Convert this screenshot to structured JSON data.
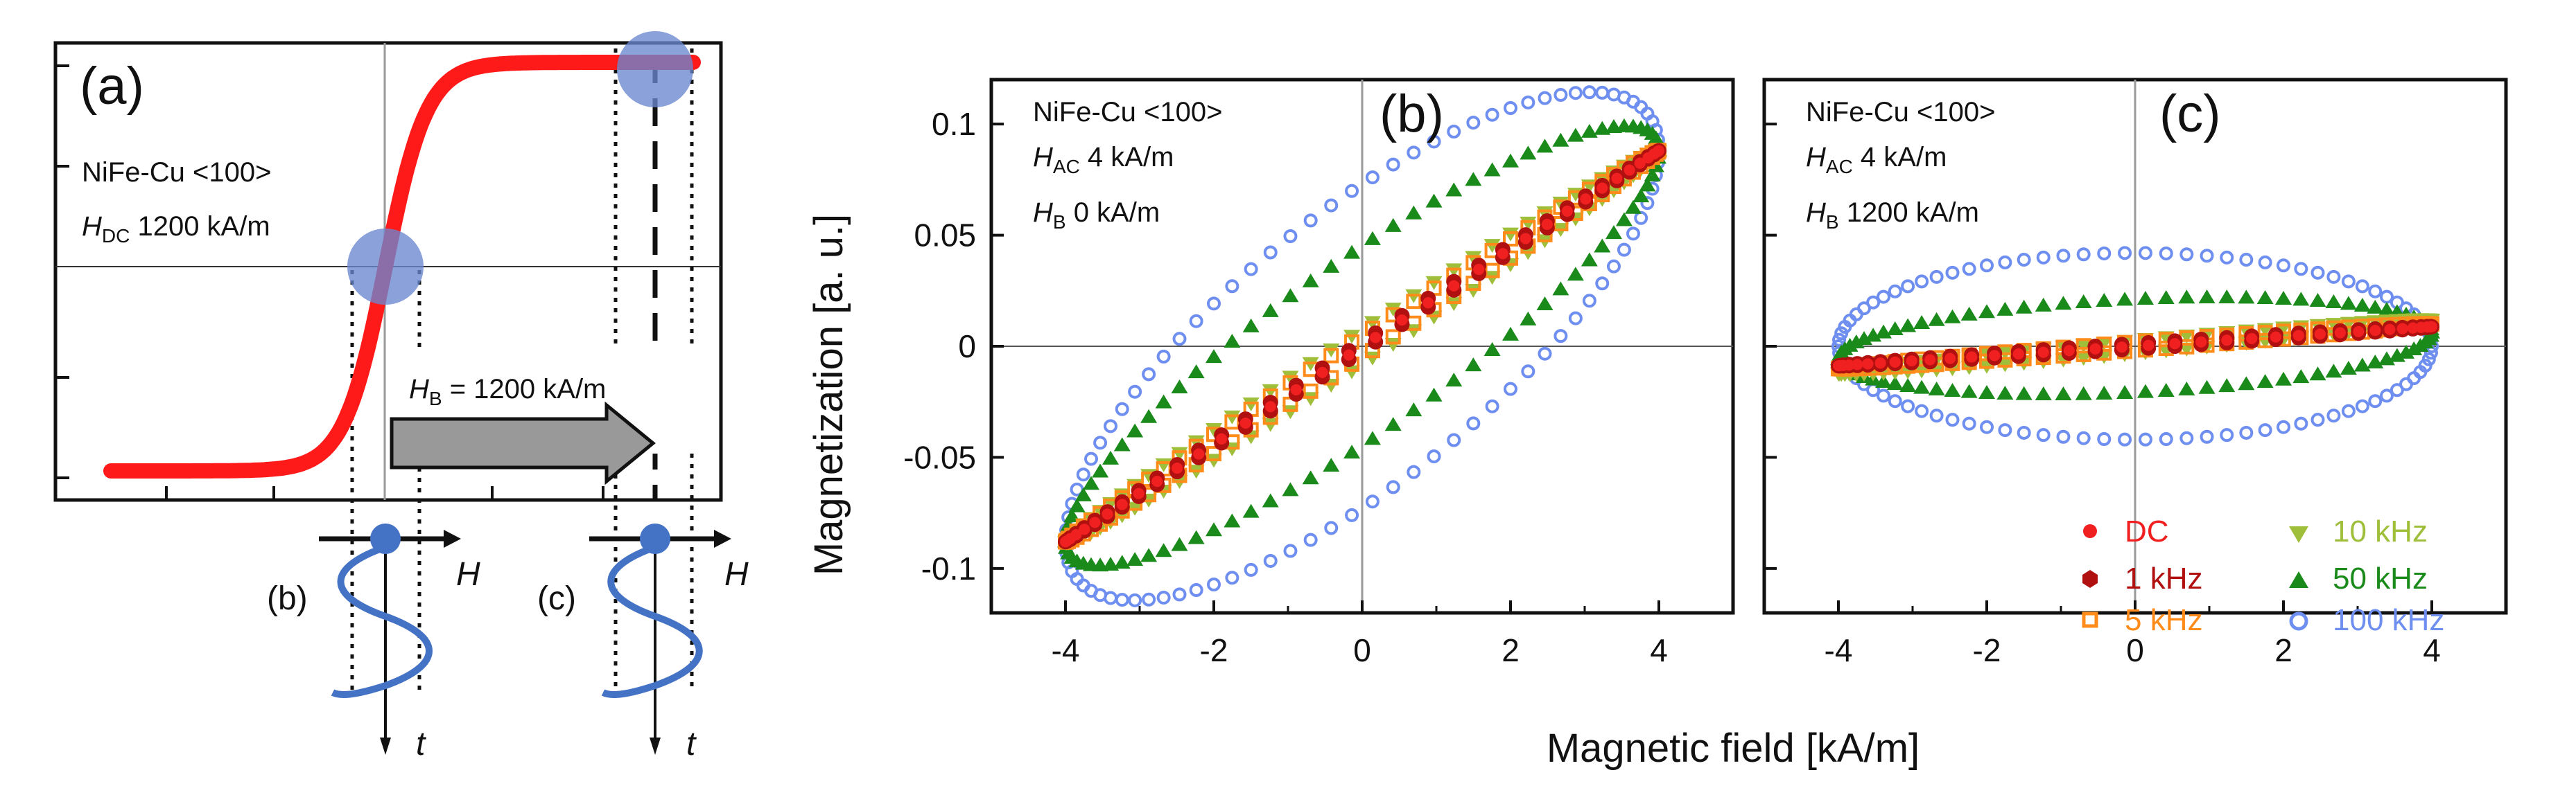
{
  "colors": {
    "dc": "#f02020",
    "k1": "#b01010",
    "k5": "#ff8c1a",
    "k10": "#9fbf3a",
    "k50": "#1a8a1a",
    "k100": "#6f8ff0",
    "marker": "#6a86d0",
    "wave": "#4472c4",
    "sigmoid": "#ff1a1a",
    "frame": "#111111"
  },
  "panel_a": {
    "label": "(a)",
    "sample": "NiFe-Cu <100>",
    "hdc_sym": "H",
    "hdc_sub": "DC",
    "hdc_val": " 1200 kA/m",
    "arrow_sym": "H",
    "arrow_sub": "B",
    "arrow_val": " = 1200 kA/m",
    "point_b": "(b)",
    "point_c": "(c)",
    "field_axis": "H",
    "time_axis": "t"
  },
  "panel_b": {
    "label": "(b)",
    "sample": "NiFe-Cu <100>",
    "hac_sym": "H",
    "hac_sub": "AC",
    "hac_val": " 4 kA/m",
    "hb_sym": "H",
    "hb_sub": "B",
    "hb_val": " 0 kA/m"
  },
  "panel_c": {
    "label": "(c)",
    "sample": "NiFe-Cu <100>",
    "hac_sym": "H",
    "hac_sub": "AC",
    "hac_val": " 4 kA/m",
    "hb_sym": "H",
    "hb_sub": "B",
    "hb_val": " 1200 kA/m"
  },
  "legend": {
    "dc": "DC",
    "k1": "1 kHz",
    "k5": "5 kHz",
    "k10": "10 kHz",
    "k50": "50 kHz",
    "k100": "100 kHz"
  },
  "chart_data": [
    {
      "id": "a",
      "type": "line",
      "title": "(a)",
      "xlabel": "H",
      "ylabel": "",
      "series": [
        {
          "name": "DC magnetization curve (sigmoid)",
          "shape": "tanh",
          "center_x": 0,
          "bias_x": 1200,
          "note": "relative units, saturates at high field"
        }
      ],
      "annotations": [
        "NiFe-Cu <100>",
        "H_DC 1200 kA/m",
        "H_B = 1200 kA/m",
        "(b)",
        "(c)"
      ],
      "grid": false
    },
    {
      "id": "b",
      "type": "scatter",
      "title": "(b)",
      "xlabel": "Magnetic field [kA/m]",
      "ylabel": "Magnetization [a. u.]",
      "xlim": [
        -5,
        5
      ],
      "ylim": [
        -0.12,
        0.12
      ],
      "xticks": [
        -4,
        -2,
        0,
        2,
        4
      ],
      "yticks": [
        -0.1,
        -0.05,
        0,
        0.05,
        0.1
      ],
      "ytick_labels": [
        "-0.1",
        "-0.05",
        "0",
        "0.05",
        "0.1"
      ],
      "hac": 4,
      "hb": 0,
      "series": [
        {
          "name": "DC",
          "slope": 0.022,
          "width": 0.0,
          "marker": "filled-circle"
        },
        {
          "name": "1 kHz",
          "slope": 0.022,
          "width": 0.002,
          "marker": "filled-hexagon"
        },
        {
          "name": "5 kHz",
          "slope": 0.022,
          "width": 0.005,
          "marker": "open-square"
        },
        {
          "name": "10 kHz",
          "slope": 0.022,
          "width": 0.008,
          "marker": "filled-triangle-down"
        },
        {
          "name": "50 kHz",
          "slope": 0.022,
          "width": 0.045,
          "tilt": 0.95,
          "marker": "filled-triangle-up"
        },
        {
          "name": "100 kHz",
          "slope": 0.022,
          "width": 0.073,
          "tilt": 0.9,
          "marker": "open-circle"
        }
      ]
    },
    {
      "id": "c",
      "type": "scatter",
      "title": "(c)",
      "xlabel": "Magnetic field [kA/m]",
      "ylabel": "Magnetization [a. u.]",
      "xlim": [
        -5,
        5
      ],
      "ylim": [
        -0.12,
        0.12
      ],
      "xticks": [
        -4,
        -2,
        0,
        2,
        4
      ],
      "hac": 4,
      "hb": 1200,
      "series": [
        {
          "name": "DC",
          "slope": 0.0022,
          "width": 0.0,
          "marker": "filled-circle"
        },
        {
          "name": "1 kHz",
          "slope": 0.0022,
          "width": 0.0012,
          "marker": "filled-hexagon"
        },
        {
          "name": "5 kHz",
          "slope": 0.0025,
          "width": 0.002,
          "marker": "open-square"
        },
        {
          "name": "10 kHz",
          "slope": 0.003,
          "width": 0.003,
          "marker": "filled-triangle-down"
        },
        {
          "name": "50 kHz",
          "slope": 0.0015,
          "width": 0.021,
          "tilt": 0.8,
          "marker": "filled-triangle-up"
        },
        {
          "name": "100 kHz",
          "slope": 0.0,
          "width": 0.042,
          "tilt": 0.6,
          "marker": "open-circle"
        }
      ]
    }
  ]
}
